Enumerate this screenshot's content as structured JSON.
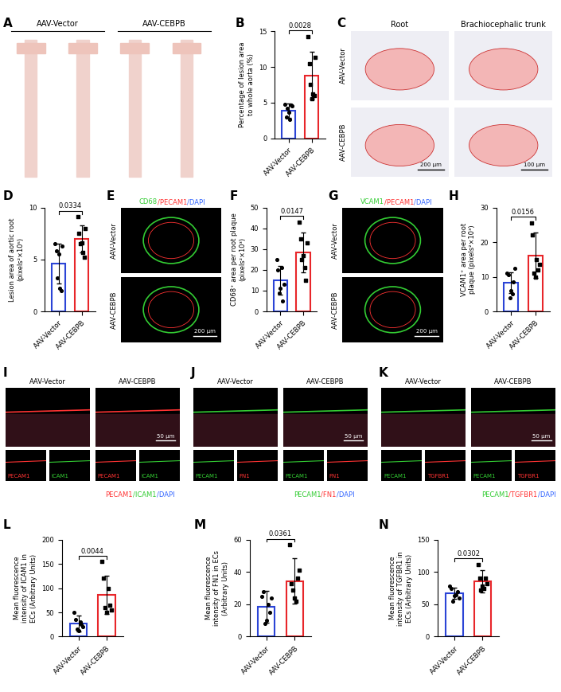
{
  "chart_data": [
    {
      "type": "bar",
      "panel": "B",
      "categories": [
        "AAV-Vector",
        "AAV-CEBPB"
      ],
      "colors": [
        "#2b44d6",
        "#e8262a"
      ],
      "y_label": "Percentage of lesion area to whole aorta (%)",
      "values": [
        3.9,
        8.8
      ],
      "error": [
        1.0,
        3.3
      ],
      "points": [
        [
          4.8,
          3.0,
          4.2,
          3.6,
          2.6,
          4.6,
          4.5
        ],
        [
          14.2,
          10.5,
          7.5,
          5.5,
          6.2,
          6.0,
          11.3
        ]
      ],
      "ylim": [
        0,
        15
      ],
      "yticks": [
        0,
        5,
        10,
        15
      ],
      "annotation": "0.0028"
    },
    {
      "type": "bar",
      "panel": "D",
      "categories": [
        "AAV-Vector",
        "AAV-CEBPB"
      ],
      "colors": [
        "#2b44d6",
        "#e8262a"
      ],
      "y_label": "Lesion area of aortic root (pixels²×10⁵)",
      "values": [
        4.6,
        7.0
      ],
      "error": [
        1.9,
        1.3
      ],
      "points": [
        [
          6.5,
          5.8,
          3.2,
          5.5,
          2.2,
          2.0,
          6.3
        ],
        [
          9.1,
          7.5,
          6.5,
          6.6,
          5.7,
          5.2,
          8.0
        ]
      ],
      "ylim": [
        0,
        10
      ],
      "yticks": [
        0,
        5,
        10
      ],
      "annotation": "0.0334"
    },
    {
      "type": "bar",
      "panel": "F",
      "categories": [
        "AAV-Vector",
        "AAV-CEBPB"
      ],
      "colors": [
        "#2b44d6",
        "#e8262a"
      ],
      "y_label": "CD68⁺ area per root plaque (pixels²×10³)",
      "values": [
        15,
        28.5
      ],
      "error": [
        7,
        9.5
      ],
      "points": [
        [
          25,
          20,
          9,
          11,
          21,
          5,
          13
        ],
        [
          43,
          35,
          25,
          27,
          21,
          15,
          33
        ]
      ],
      "ylim": [
        0,
        50
      ],
      "yticks": [
        0,
        10,
        20,
        30,
        40,
        50
      ],
      "annotation": "0.0147"
    },
    {
      "type": "bar",
      "panel": "H",
      "categories": [
        "AAV-Vector",
        "AAV-CEBPB"
      ],
      "colors": [
        "#2b44d6",
        "#e8262a"
      ],
      "y_label": "VCAM1⁺ area per root plaque (pixels²×10³)",
      "values": [
        8.2,
        16.2
      ],
      "error": [
        3.0,
        6.5
      ],
      "points": [
        [
          11,
          10.5,
          4,
          6,
          5,
          8.5,
          12.5
        ],
        [
          25.5,
          22,
          11,
          10,
          15,
          12,
          13.5
        ]
      ],
      "ylim": [
        0,
        30
      ],
      "yticks": [
        0,
        10,
        20,
        30
      ],
      "annotation": "0.0156"
    },
    {
      "type": "bar",
      "panel": "L",
      "categories": [
        "AAV-Vector",
        "AAV-CEBPB"
      ],
      "colors": [
        "#2b44d6",
        "#e8262a"
      ],
      "y_label": "Mean fluorescence intensity of ICAM1 in ECs (Arbitrary Units)",
      "values": [
        27,
        86
      ],
      "error": [
        17,
        40
      ],
      "points": [
        [
          50,
          35,
          15,
          12,
          30,
          25,
          20
        ],
        [
          155,
          120,
          60,
          50,
          100,
          65,
          55
        ]
      ],
      "ylim": [
        0,
        200
      ],
      "yticks": [
        0,
        50,
        100,
        150,
        200
      ],
      "annotation": "0.0044"
    },
    {
      "type": "bar",
      "panel": "M",
      "categories": [
        "AAV-Vector",
        "AAV-CEBPB"
      ],
      "colors": [
        "#2b44d6",
        "#e8262a"
      ],
      "y_label": "Mean fluorescence intensity of FN1 in ECs (Arbitrary Units)",
      "values": [
        18.5,
        34.5
      ],
      "error": [
        10,
        14
      ],
      "points": [
        [
          25,
          28,
          8,
          10,
          20,
          15,
          24
        ],
        [
          57,
          33,
          29,
          24,
          22,
          36,
          41
        ]
      ],
      "ylim": [
        0,
        60
      ],
      "yticks": [
        0,
        20,
        40,
        60
      ],
      "annotation": "0.0361"
    },
    {
      "type": "bar",
      "panel": "N",
      "categories": [
        "AAV-Vector",
        "AAV-CEBPB"
      ],
      "colors": [
        "#2b44d6",
        "#e8262a"
      ],
      "y_label": "Mean fluorescence intensity of TGFBR1 in ECs (Arbitrary Units)",
      "values": [
        67,
        86
      ],
      "error": [
        9,
        17
      ],
      "points": [
        [
          78,
          75,
          55,
          63,
          65,
          70,
          60
        ],
        [
          112,
          90,
          72,
          78,
          75,
          90,
          82
        ]
      ],
      "ylim": [
        0,
        150
      ],
      "yticks": [
        0,
        50,
        100,
        150
      ],
      "annotation": "0.0302"
    }
  ],
  "image_panels": [
    {
      "panel": "A",
      "columns": [
        "AAV-Vector",
        "AAV-CEBPB"
      ]
    },
    {
      "panel": "C",
      "columns": [
        "Root",
        "Brachiocephalic trunk"
      ],
      "rows": [
        "AAV-Vector",
        "AAV-CEBPB"
      ],
      "scale_bars": [
        "200 μm",
        "100 μm"
      ]
    },
    {
      "panel": "E",
      "rows": [
        "AAV-Vector",
        "AAV-CEBPB"
      ],
      "scale_bar": "200 μm",
      "stain": [
        {
          "text": "CD68",
          "color": "#33cc33"
        },
        {
          "text": "/PECAM1",
          "color": "#ff3333"
        },
        {
          "text": "/DAPI",
          "color": "#3366ff"
        }
      ]
    },
    {
      "panel": "G",
      "rows": [
        "AAV-Vector",
        "AAV-CEBPB"
      ],
      "scale_bar": "200 μm",
      "stain": [
        {
          "text": "VCAM1",
          "color": "#33cc33"
        },
        {
          "text": "/PECAM1",
          "color": "#ff3333"
        },
        {
          "text": "/DAPI",
          "color": "#3366ff"
        }
      ]
    },
    {
      "panel": "I",
      "columns": [
        "AAV-Vector",
        "AAV-CEBPB"
      ],
      "scale_bar": "50 μm",
      "channels": [
        {
          "text": "PECAM1",
          "color": "#ff3333"
        },
        {
          "text": "ICAM1",
          "color": "#33cc33"
        }
      ],
      "stain": [
        {
          "text": "PECAM1",
          "color": "#ff3333"
        },
        {
          "text": "/ICAM1",
          "color": "#33cc33"
        },
        {
          "text": "/DAPI",
          "color": "#3366ff"
        }
      ]
    },
    {
      "panel": "J",
      "columns": [
        "AAV-Vector",
        "AAV-CEBPB"
      ],
      "scale_bar": "50 μm",
      "channels": [
        {
          "text": "PECAM1",
          "color": "#33cc33"
        },
        {
          "text": "FN1",
          "color": "#ff3333"
        }
      ],
      "stain": [
        {
          "text": "PECAM1",
          "color": "#33cc33"
        },
        {
          "text": "/FN1",
          "color": "#ff3333"
        },
        {
          "text": "/DAPI",
          "color": "#3366ff"
        }
      ]
    },
    {
      "panel": "K",
      "columns": [
        "AAV-Vector",
        "AAV-CEBPB"
      ],
      "scale_bar": "50 μm",
      "channels": [
        {
          "text": "PECAM1",
          "color": "#33cc33"
        },
        {
          "text": "TGFBR1",
          "color": "#ff3333"
        }
      ],
      "stain": [
        {
          "text": "PECAM1",
          "color": "#33cc33"
        },
        {
          "text": "/TGFBR1",
          "color": "#ff3333"
        },
        {
          "text": "/DAPI",
          "color": "#3366ff"
        }
      ]
    }
  ]
}
